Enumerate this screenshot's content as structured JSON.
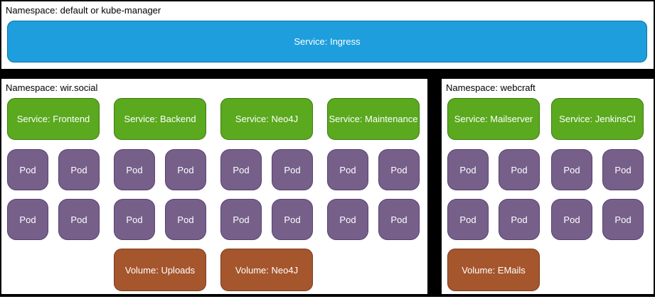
{
  "colors": {
    "background": "#000000",
    "panel": "#FFFFFF",
    "label_text": "#000000",
    "node_text": "#FFFFFF",
    "ingress_fill": "#1E9EDC",
    "ingress_stroke": "#0F72A8",
    "service_fill": "#5AA91E",
    "service_stroke": "#3D7D10",
    "pod_fill": "#76608A",
    "pod_stroke": "#564170",
    "volume_fill": "#A5562D",
    "volume_stroke": "#7A3C1E"
  },
  "top_section": {
    "namespace_label": "Namespace: default or kube-manager",
    "service_label": "Service: Ingress"
  },
  "namespaces": [
    {
      "label": "Namespace: wir.social",
      "columns": [
        {
          "service": "Service: Frontend",
          "pods": [
            "Pod",
            "Pod",
            "Pod",
            "Pod"
          ],
          "volume": null
        },
        {
          "service": "Service: Backend",
          "pods": [
            "Pod",
            "Pod",
            "Pod",
            "Pod"
          ],
          "volume": "Volume: Uploads"
        },
        {
          "service": "Service: Neo4J",
          "pods": [
            "Pod",
            "Pod",
            "Pod",
            "Pod"
          ],
          "volume": "Volume: Neo4J"
        },
        {
          "service": "Service: Maintenance",
          "pods": [
            "Pod",
            "Pod",
            "Pod",
            "Pod"
          ],
          "volume": null
        }
      ]
    },
    {
      "label": "Namespace: webcraft",
      "columns": [
        {
          "service": "Service: Mailserver",
          "pods": [
            "Pod",
            "Pod",
            "Pod",
            "Pod"
          ],
          "volume": "Volume: EMails"
        },
        {
          "service": "Service: JenkinsCI",
          "pods": [
            "Pod",
            "Pod",
            "Pod",
            "Pod"
          ],
          "volume": null
        }
      ]
    }
  ]
}
